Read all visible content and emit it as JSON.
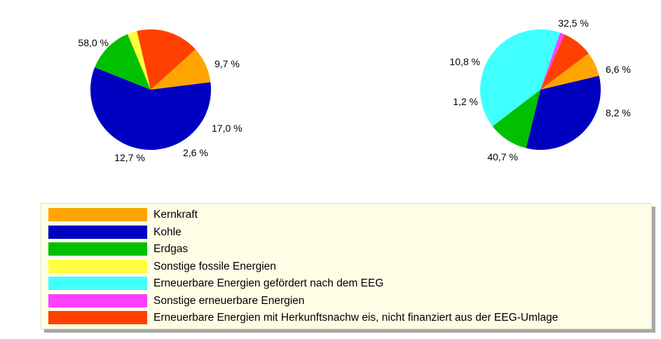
{
  "chart_data": [
    {
      "type": "pie",
      "categories": [
        "Kernkraft",
        "Kohle",
        "Erdgas",
        "Sonstige fossile Energien",
        "Erneuerbare Energien gefördert nach dem EEG",
        "Sonstige erneuerbare Energien",
        "Erneuerbare Energien mit Herkunftsnachw eis, nicht finanziert aus der EEG-Umlage"
      ],
      "values": [
        9.7,
        58.0,
        12.7,
        2.6,
        0,
        0,
        17.0
      ],
      "labels": [
        "9,7 %",
        "58,0 %",
        "12,7 %",
        "2,6 %",
        "",
        "",
        "17,0 %"
      ]
    },
    {
      "type": "pie",
      "categories": [
        "Kernkraft",
        "Kohle",
        "Erdgas",
        "Sonstige fossile Energien",
        "Erneuerbare Energien gefördert nach dem EEG",
        "Sonstige erneuerbare Energien",
        "Erneuerbare Energien mit Herkunftsnachw eis, nicht finanziert aus der EEG-Umlage"
      ],
      "values": [
        6.6,
        32.5,
        10.8,
        0,
        40.7,
        1.2,
        8.2
      ],
      "labels": [
        "6,6 %",
        "32,5 %",
        "10,8 %",
        "",
        "40,7 %",
        "1,2 %",
        "8,2 %"
      ]
    }
  ],
  "legend": [
    {
      "label": "Kernkraft",
      "color": "#ffa500"
    },
    {
      "label": "Kohle",
      "color": "#0000c0"
    },
    {
      "label": "Erdgas",
      "color": "#00c000"
    },
    {
      "label": "Sonstige fossile Energien",
      "color": "#ffff40"
    },
    {
      "label": "Erneuerbare Energien gefördert nach dem EEG",
      "color": "#40ffff"
    },
    {
      "label": "Sonstige erneuerbare Energien",
      "color": "#ff40ff"
    },
    {
      "label": "Erneuerbare Energien mit Herkunftsnachw eis, nicht finanziert aus der EEG-Umlage",
      "color": "#ff4000"
    }
  ]
}
